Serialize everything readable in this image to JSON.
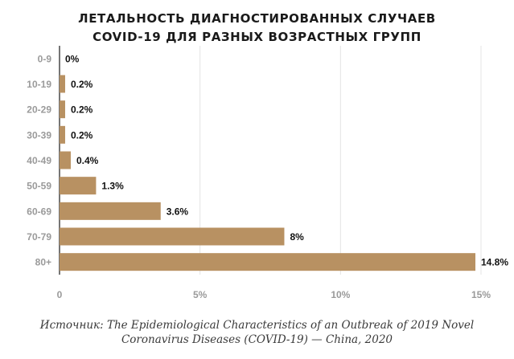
{
  "title_lines": [
    "ЛЕТАЛЬНОСТЬ ДИАГНОСТИРОВАННЫХ СЛУЧАЕВ",
    "COVID-19 ДЛЯ РАЗНЫХ ВОЗРАСТНЫХ ГРУПП"
  ],
  "source_lines": [
    "Источник: The Epidemiological Characteristics of an Outbreak of 2019 Novel",
    "Coronavirus Diseases (COVID-19) — China, 2020"
  ],
  "chart_data": {
    "type": "bar",
    "orientation": "horizontal",
    "categories": [
      "0-9",
      "10-19",
      "20-29",
      "30-39",
      "40-49",
      "50-59",
      "60-69",
      "70-79",
      "80+"
    ],
    "values": [
      0,
      0.2,
      0.2,
      0.2,
      0.4,
      1.3,
      3.6,
      8,
      14.8
    ],
    "value_labels": [
      "0%",
      "0.2%",
      "0.2%",
      "0.2%",
      "0.4%",
      "1.3%",
      "3.6%",
      "8%",
      "14.8%"
    ],
    "x_ticks": [
      0,
      5,
      10,
      15
    ],
    "x_tick_labels": [
      "0",
      "5%",
      "10%",
      "15%"
    ],
    "xlim": [
      0,
      15
    ],
    "grid": true,
    "bar_color": "#b89162"
  }
}
